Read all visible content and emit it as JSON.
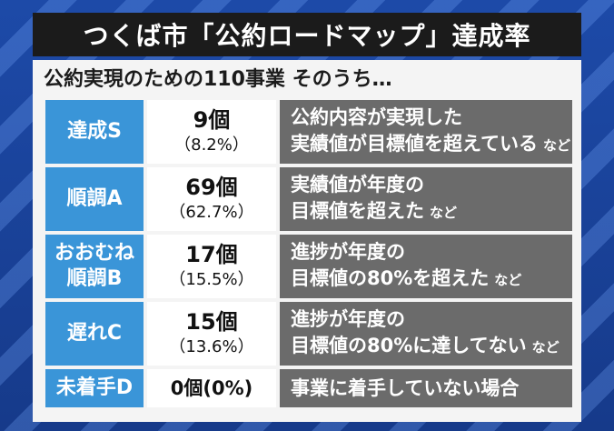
{
  "title": "つくば市「公約ロードマップ」達成率",
  "subtitle": "公約実現のための110事業 そのうち…",
  "rows": [
    {
      "grade": "達成S",
      "count": "9個",
      "pct": "（8.2%）",
      "desc_line1": "公約内容が実現した",
      "desc_line2": "実績値が目標値を超えている",
      "suffix": "など"
    },
    {
      "grade": "順調A",
      "count": "69個",
      "pct": "（62.7%）",
      "desc_line1": "実績値が年度の",
      "desc_line2": "目標値を超えた",
      "suffix": "など"
    },
    {
      "grade_line1": "おおむね",
      "grade_line2": "順調B",
      "count": "17個",
      "pct": "（15.5%）",
      "desc_line1": "進捗が年度の",
      "desc_line2": "目標値の80%を超えた",
      "suffix": "など"
    },
    {
      "grade": "遅れC",
      "count": "15個",
      "pct": "（13.6%）",
      "desc_line1": "進捗が年度の",
      "desc_line2": "目標値の80%に達してない",
      "suffix": "など"
    },
    {
      "grade": "未着手D",
      "count_inline": "0個(0%)",
      "desc_line1": "事業に着手していない場合"
    }
  ],
  "colors": {
    "grade_bg": "#3a95d8",
    "desc_bg": "#6b6b6b",
    "title_bg": "#1b1b1b"
  }
}
